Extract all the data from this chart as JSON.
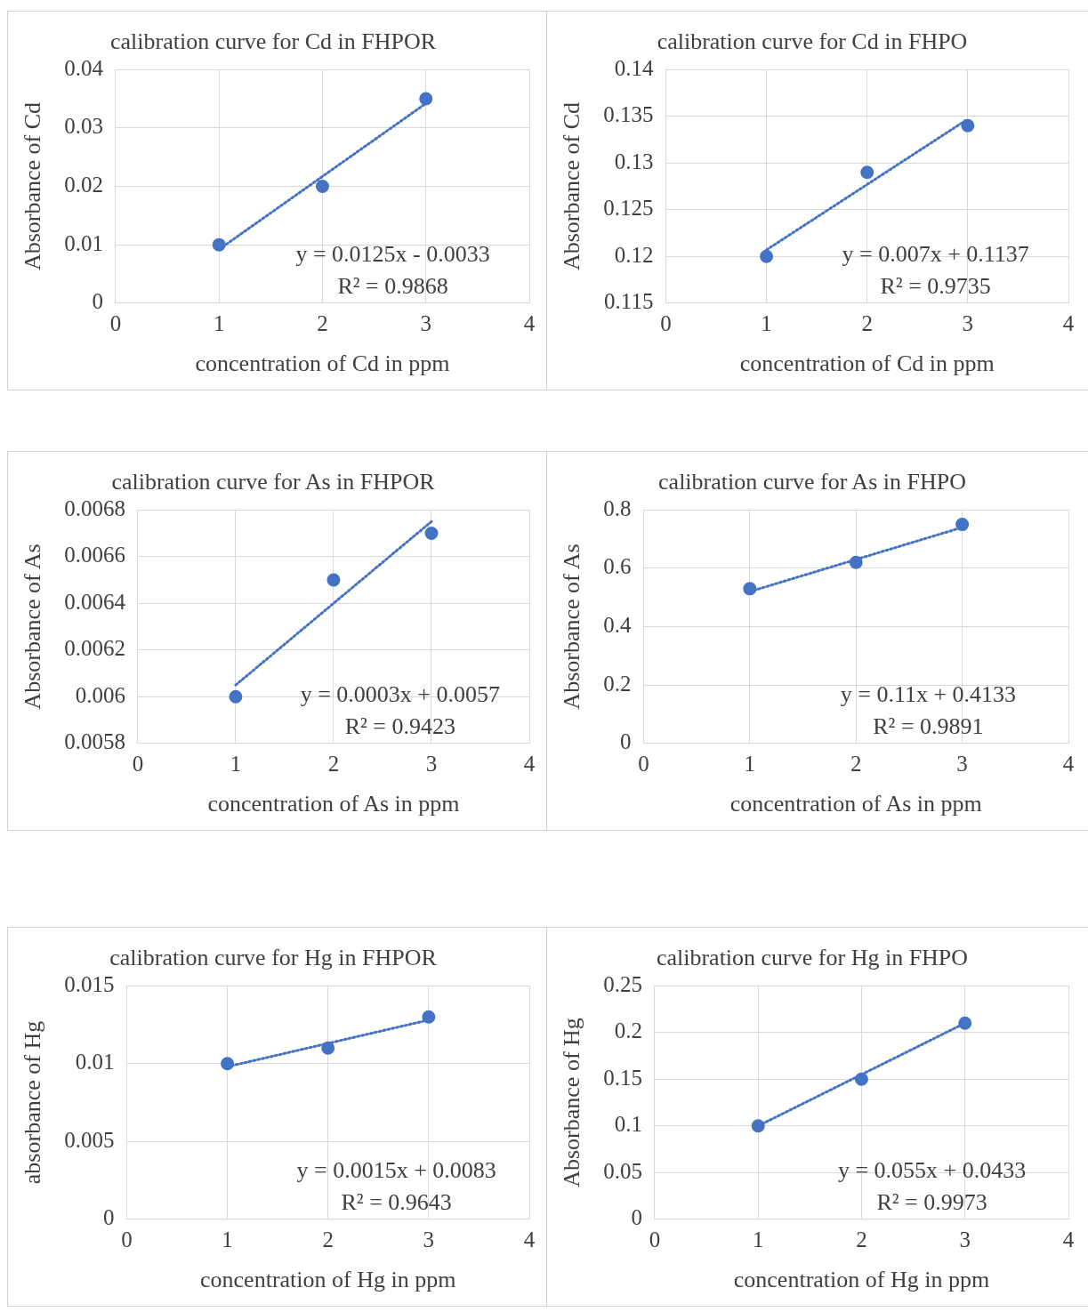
{
  "chart_data": [
    {
      "type": "scatter",
      "title": "calibration curve for Cd in FHPOR",
      "xlabel": "concentration of Cd in ppm",
      "ylabel": "Absorbance of Cd",
      "x": [
        1,
        2,
        3
      ],
      "xlim": [
        0,
        4
      ],
      "xticks": [
        0,
        1,
        2,
        3,
        4
      ],
      "ylim": [
        0,
        0.04
      ],
      "yticks": [
        0,
        0.01,
        0.02,
        0.03,
        0.04
      ],
      "grid": true,
      "legend": false,
      "marker": "circle",
      "annotations": [
        "y = 0.0125x - 0.0033",
        "R² = 0.9868"
      ],
      "series": [
        {
          "type": "scatter",
          "color": "#4472c4",
          "values": [
            0.01,
            0.02,
            0.035
          ]
        },
        {
          "type": "line",
          "color": "#4472c4",
          "values": [
            0.0092,
            0.0217,
            0.0342
          ],
          "line_style": "dotted",
          "marker": "none"
        }
      ]
    },
    {
      "type": "scatter",
      "title": "calibration curve for Cd in FHPO",
      "xlabel": "concentration of Cd in ppm",
      "ylabel": "Absorbance of Cd",
      "x": [
        1,
        2,
        3
      ],
      "xlim": [
        0,
        4
      ],
      "xticks": [
        0,
        1,
        2,
        3,
        4
      ],
      "ylim": [
        0.115,
        0.14
      ],
      "yticks": [
        0.115,
        0.12,
        0.125,
        0.13,
        0.135,
        0.14
      ],
      "grid": true,
      "legend": false,
      "marker": "circle",
      "annotations": [
        "y = 0.007x + 0.1137",
        "R² = 0.9735"
      ],
      "series": [
        {
          "type": "scatter",
          "color": "#4472c4",
          "values": [
            0.12,
            0.129,
            0.134
          ]
        },
        {
          "type": "line",
          "color": "#4472c4",
          "values": [
            0.1207,
            0.1277,
            0.1347
          ],
          "line_style": "dotted",
          "marker": "none"
        }
      ]
    },
    {
      "type": "scatter",
      "title": "calibration curve for As in FHPOR",
      "xlabel": "concentration of As in ppm",
      "ylabel": "Absorbance of As",
      "x": [
        1,
        2,
        3
      ],
      "xlim": [
        0,
        4
      ],
      "xticks": [
        0,
        1,
        2,
        3,
        4
      ],
      "ylim": [
        0.0058,
        0.0068
      ],
      "yticks": [
        0.0058,
        0.006,
        0.0062,
        0.0064,
        0.0066,
        0.0068
      ],
      "grid": true,
      "legend": false,
      "marker": "circle",
      "annotations": [
        "y = 0.0003x + 0.0057",
        "R² = 0.9423"
      ],
      "series": [
        {
          "type": "scatter",
          "color": "#4472c4",
          "values": [
            0.006,
            0.0065,
            0.0067
          ]
        },
        {
          "type": "line",
          "color": "#4472c4",
          "values": [
            0.00605,
            0.0064,
            0.00675
          ],
          "line_style": "dotted",
          "marker": "none"
        }
      ]
    },
    {
      "type": "scatter",
      "title": "calibration curve for As in FHPO",
      "xlabel": "concentration of As in ppm",
      "ylabel": "Absorbance of As",
      "x": [
        1,
        2,
        3
      ],
      "xlim": [
        0,
        4
      ],
      "xticks": [
        0,
        1,
        2,
        3,
        4
      ],
      "ylim": [
        0,
        0.8
      ],
      "yticks": [
        0,
        0.2,
        0.4,
        0.6,
        0.8
      ],
      "grid": true,
      "legend": false,
      "marker": "circle",
      "annotations": [
        "y = 0.11x + 0.4133",
        "R² = 0.9891"
      ],
      "series": [
        {
          "type": "scatter",
          "color": "#4472c4",
          "values": [
            0.53,
            0.62,
            0.75
          ]
        },
        {
          "type": "line",
          "color": "#4472c4",
          "values": [
            0.52,
            0.63,
            0.74
          ],
          "line_style": "dotted",
          "marker": "none"
        }
      ]
    },
    {
      "type": "scatter",
      "title": "calibration curve for Hg in FHPOR",
      "xlabel": "concentration of Hg in ppm",
      "ylabel": "absorbance of Hg",
      "x": [
        1,
        2,
        3
      ],
      "xlim": [
        0,
        4
      ],
      "xticks": [
        0,
        1,
        2,
        3,
        4
      ],
      "ylim": [
        0,
        0.015
      ],
      "yticks": [
        0,
        0.005,
        0.01,
        0.015
      ],
      "grid": true,
      "legend": false,
      "marker": "circle",
      "annotations": [
        "y = 0.0015x + 0.0083",
        "R² = 0.9643"
      ],
      "series": [
        {
          "type": "scatter",
          "color": "#4472c4",
          "values": [
            0.01,
            0.011,
            0.013
          ]
        },
        {
          "type": "line",
          "color": "#4472c4",
          "values": [
            0.0098,
            0.0113,
            0.0128
          ],
          "line_style": "dotted",
          "marker": "none"
        }
      ]
    },
    {
      "type": "scatter",
      "title": "calibration curve for Hg in FHPO",
      "xlabel": "concentration of Hg in ppm",
      "ylabel": "Absorbance of Hg",
      "x": [
        1,
        2,
        3
      ],
      "xlim": [
        0,
        4
      ],
      "xticks": [
        0,
        1,
        2,
        3,
        4
      ],
      "ylim": [
        0,
        0.25
      ],
      "yticks": [
        0,
        0.05,
        0.1,
        0.15,
        0.2,
        0.25
      ],
      "grid": true,
      "legend": false,
      "marker": "circle",
      "annotations": [
        "y = 0.055x + 0.0433",
        "R² = 0.9973"
      ],
      "series": [
        {
          "type": "scatter",
          "color": "#4472c4",
          "values": [
            0.1,
            0.15,
            0.21
          ]
        },
        {
          "type": "line",
          "color": "#4472c4",
          "values": [
            0.1,
            0.155,
            0.21
          ],
          "line_style": "dotted",
          "marker": "none"
        }
      ]
    }
  ]
}
